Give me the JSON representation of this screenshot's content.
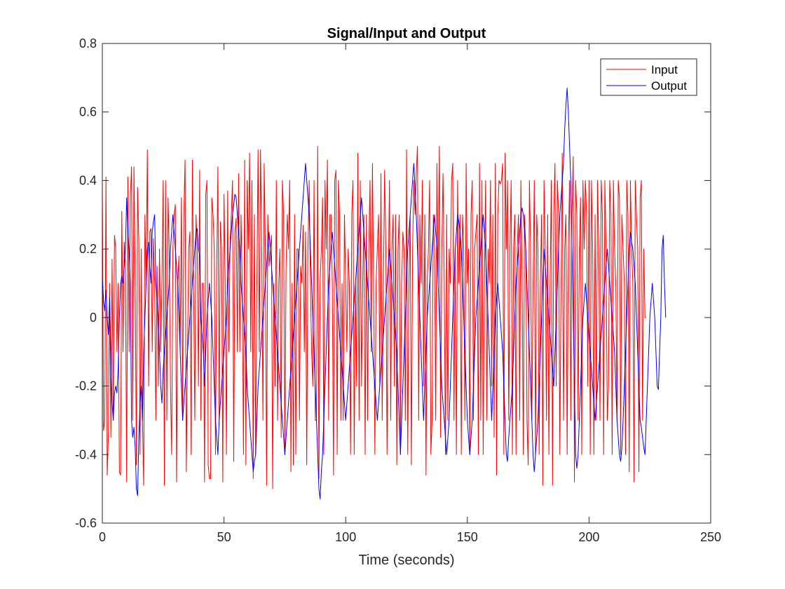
{
  "chart_data": {
    "type": "line",
    "title": "Signal/Input and Output",
    "xlabel": "Time (seconds)",
    "ylabel": "",
    "xlim": [
      0,
      250
    ],
    "ylim": [
      -0.6,
      0.8
    ],
    "xticks": [
      0,
      50,
      100,
      150,
      200,
      250
    ],
    "xtick_labels": [
      "0",
      "50",
      "100",
      "150",
      "200",
      "250"
    ],
    "yticks": [
      -0.6,
      -0.4,
      -0.2,
      0,
      0.2,
      0.4,
      0.6,
      0.8
    ],
    "ytick_labels": [
      "-0.6",
      "-0.4",
      "-0.2",
      "0",
      "0.2",
      "0.4",
      "0.6",
      "0.8"
    ],
    "grid": false,
    "legend_position": "top-right",
    "series": [
      {
        "name": "Input",
        "color": "#ff0000",
        "x_start": 0,
        "x_step": 0.5,
        "values": [
          0.4,
          -0.33,
          -0.3,
          0.41,
          -0.46,
          -0.34,
          0.1,
          -0.35,
          0.17,
          -0.3,
          0.24,
          0.2,
          -0.1,
          0.1,
          -0.45,
          -0.46,
          0.31,
          -0.1,
          0.22,
          0.15,
          -0.48,
          0.41,
          -0.1,
          0.35,
          0.44,
          -0.3,
          0.44,
          0.1,
          -0.43,
          0.38,
          0.22,
          -0.4,
          0.2,
          -0.3,
          -0.49,
          0.3,
          0.1,
          0.49,
          -0.2,
          0.25,
          0.26,
          -0.1,
          0.23,
          0.1,
          -0.3,
          0.15,
          -0.2,
          0.2,
          -0.1,
          0.1,
          0.4,
          -0.49,
          0.4,
          -0.3,
          0.35,
          0.2,
          -0.2,
          -0.4,
          0.2,
          0.3,
          0.33,
          -0.48,
          0.1,
          0.18,
          -0.1,
          0.35,
          -0.3,
          0.3,
          0.46,
          -0.45,
          -0.1,
          0.2,
          0.25,
          -0.4,
          0.46,
          0.1,
          -0.3,
          0.3,
          0.2,
          -0.2,
          0.43,
          -0.3,
          0.1,
          0.1,
          -0.48,
          0.36,
          0.4,
          -0.43,
          -0.47,
          -0.47,
          0.35,
          0.3,
          0.2,
          -0.4,
          0.13,
          0.44,
          -0.3,
          0.28,
          0.2,
          -0.48,
          0.36,
          0.1,
          -0.4,
          0.37,
          -0.1,
          0.22,
          0.3,
          0.4,
          -0.42,
          0.25,
          0.29,
          -0.1,
          0.42,
          -0.1,
          0.3,
          0.1,
          -0.4,
          0.46,
          -0.43,
          0.4,
          0.2,
          0.48,
          -0.1,
          0.4,
          -0.47,
          0.3,
          -0.4,
          0.1,
          0.49,
          -0.1,
          0.49,
          0.2,
          -0.3,
          0.45,
          0.2,
          -0.49,
          0.3,
          0.15,
          0.2,
          0.24,
          -0.5,
          0.1,
          -0.2,
          0.4,
          -0.3,
          0.1,
          0.2,
          -0.35,
          0.4,
          0.3,
          -0.4,
          0.15,
          0.3,
          0.2,
          0.4,
          -0.45,
          0.1,
          -0.43,
          0.3,
          -0.4,
          0.2,
          0.2,
          -0.3,
          0.15,
          0.1,
          0.27,
          -0.1,
          0.25,
          -0.43,
          0.2,
          0.4,
          0.1,
          -0.1,
          -0.2,
          0.4,
          -0.3,
          -0.3,
          0.5,
          -0.47,
          0.1,
          0.2,
          0.35,
          -0.4,
          0.4,
          0.2,
          0.46,
          -0.3,
          0.3,
          0.3,
          0.1,
          -0.46,
          0.4,
          0.43,
          -0.4,
          0.4,
          0.3,
          -0.3,
          0.1,
          -0.3,
          0.3,
          0.1,
          -0.1,
          0.2,
          0.1,
          -0.4,
          0.3,
          0.4,
          -0.4,
          0.1,
          -0.2,
          0.48,
          -0.3,
          0.4,
          -0.2,
          0.1,
          0.3,
          -0.4,
          0.3,
          -0.3,
          0.2,
          0.4,
          -0.1,
          0.45,
          0.1,
          -0.4,
          0.1,
          0.2,
          0.3,
          -0.2,
          0.42,
          -0.3,
          0.1,
          0.43,
          0.2,
          -0.4,
          0.1,
          0.4,
          -0.3,
          0.2,
          0.3,
          -0.2,
          0.3,
          -0.43,
          0.2,
          0.3,
          -0.4,
          0.1,
          0.25,
          0.2,
          -0.3,
          0.49,
          -0.4,
          0.1,
          0.3,
          -0.43,
          0.2,
          0.4,
          0.3,
          0.42,
          0.5,
          -0.3,
          0.3,
          0.1,
          0.4,
          -0.2,
          0.3,
          -0.46,
          0.1,
          0.2,
          0.4,
          -0.4,
          -0.3,
          0.3,
          0.2,
          -0.3,
          0.45,
          0.1,
          0.5,
          -0.35,
          0.2,
          0.42,
          0.1,
          -0.4,
          0.3,
          -0.3,
          0.2,
          0.1,
          0.4,
          0.45,
          -0.3,
          0.2,
          -0.4,
          0.4,
          0.1,
          0.3,
          -0.4,
          0.3,
          0.2,
          -0.3,
          0.45,
          0.1,
          0.2,
          -0.4,
          0.3,
          0.4,
          -0.3,
          0.2,
          0.25,
          0.3,
          -0.4,
          0.45,
          -0.3,
          0.4,
          -0.4,
          0.1,
          0.4,
          -0.3,
          0.2,
          0.1,
          0.4,
          -0.2,
          0.3,
          -0.35,
          0.45,
          -0.46,
          0.3,
          0.4,
          0.39,
          0.4,
          0.45,
          -0.4,
          0.48,
          0.2,
          0.4,
          -0.3,
          0.2,
          0.4,
          -0.4,
          0.2,
          0.3,
          -0.4,
          0.2,
          0.3,
          -0.3,
          0.4,
          0.1,
          -0.4,
          0.3,
          0.2,
          -0.3,
          -0.43,
          0.4,
          0.2,
          -0.3,
          0.1,
          0.4,
          -0.4,
          0.3,
          0.2,
          -0.4,
          0.1,
          0.3,
          -0.49,
          0.4,
          0.2,
          -0.3,
          0.3,
          -0.4,
          0.1,
          0.4,
          -0.49,
          0.3,
          0.45,
          -0.2,
          0.4,
          0.3,
          -0.4,
          0.1,
          0.48,
          -0.3,
          0.2,
          0.3,
          -0.4,
          0.2,
          0.4,
          -0.3,
          0.3,
          0.47,
          -0.48,
          0.4,
          0.3,
          -0.3,
          0.2,
          0.35,
          -0.4,
          0.4,
          0.2,
          0.4,
          0.3,
          -0.2,
          0.4,
          -0.4,
          0.4,
          0.2,
          -0.4,
          0.3,
          -0.3,
          0.4,
          0.2,
          -0.3,
          0.4,
          0.3,
          -0.4,
          0.4,
          0.2,
          -0.3,
          -0.2,
          0.4,
          0.3,
          -0.4,
          0.4,
          0.2,
          0.1,
          -0.3,
          0.4,
          0.35,
          -0.4,
          0.3,
          0.2,
          0.1,
          -0.4,
          0.4,
          0.3,
          -0.45,
          0.4,
          0.2,
          0.1,
          -0.48,
          0.4,
          0.3,
          0.2,
          -0.45,
          0.35,
          0.4,
          -0.3,
          0.2,
          0.0,
          0.0
        ]
      },
      {
        "name": "Output",
        "color": "#0000ff",
        "x_start": 0,
        "x_step": 0.5,
        "values": [
          0.12,
          0.05,
          0.02,
          0.08,
          0.0,
          -0.05,
          0.06,
          -0.1,
          -0.25,
          -0.3,
          -0.22,
          -0.2,
          -0.22,
          -0.15,
          0.0,
          0.1,
          0.12,
          0.1,
          0.15,
          0.2,
          0.35,
          0.25,
          0.2,
          0.1,
          -0.3,
          -0.35,
          -0.32,
          -0.38,
          -0.5,
          -0.52,
          -0.35,
          -0.25,
          -0.2,
          -0.3,
          -0.1,
          0.0,
          0.1,
          0.2,
          0.22,
          0.15,
          0.1,
          0.25,
          0.28,
          0.3,
          0.1,
          0.05,
          0.0,
          -0.1,
          -0.2,
          -0.25,
          -0.15,
          -0.1,
          -0.05,
          0.0,
          0.05,
          0.1,
          0.2,
          0.25,
          0.3,
          0.25,
          0.2,
          0.15,
          0.1,
          0.0,
          -0.1,
          -0.2,
          -0.3,
          -0.25,
          -0.2,
          -0.15,
          -0.1,
          -0.05,
          0.0,
          0.05,
          0.1,
          0.15,
          0.2,
          0.25,
          0.26,
          0.2,
          0.18,
          0.0,
          -0.05,
          -0.1,
          -0.2,
          -0.1,
          0.0,
          0.05,
          0.1,
          0.05,
          0.0,
          -0.1,
          -0.2,
          -0.3,
          -0.35,
          -0.4,
          -0.3,
          -0.25,
          -0.2,
          -0.15,
          -0.1,
          -0.05,
          0.0,
          0.1,
          0.15,
          0.2,
          0.25,
          0.3,
          0.33,
          0.36,
          0.35,
          0.3,
          0.25,
          0.2,
          0.1,
          0.05,
          0.0,
          -0.05,
          -0.1,
          -0.2,
          -0.25,
          -0.3,
          -0.35,
          -0.4,
          -0.45,
          -0.42,
          -0.4,
          -0.3,
          -0.2,
          -0.15,
          -0.1,
          -0.05,
          0.0,
          0.05,
          0.1,
          0.15,
          0.2,
          0.25,
          0.2,
          0.15,
          0.1,
          0.05,
          0.0,
          -0.05,
          -0.1,
          -0.15,
          -0.2,
          -0.25,
          -0.3,
          -0.35,
          -0.4,
          -0.35,
          -0.3,
          -0.25,
          -0.2,
          -0.15,
          -0.1,
          -0.05,
          0.0,
          0.05,
          0.1,
          0.15,
          0.2,
          0.25,
          0.3,
          0.35,
          0.4,
          0.45,
          0.4,
          0.35,
          0.3,
          0.2,
          0.1,
          0.0,
          -0.1,
          -0.2,
          -0.3,
          -0.4,
          -0.5,
          -0.53,
          -0.45,
          -0.4,
          -0.3,
          -0.2,
          -0.1,
          0.0,
          0.1,
          0.15,
          0.2,
          0.25,
          0.2,
          0.15,
          0.1,
          0.05,
          0.0,
          -0.05,
          -0.1,
          -0.15,
          -0.2,
          -0.25,
          -0.3,
          -0.25,
          -0.2,
          -0.15,
          -0.1,
          -0.05,
          0.0,
          0.05,
          0.1,
          0.15,
          0.2,
          0.25,
          0.3,
          0.35,
          0.3,
          0.25,
          0.2,
          0.15,
          0.1,
          0.05,
          0.0,
          -0.05,
          -0.1,
          -0.15,
          -0.2,
          -0.25,
          -0.3,
          -0.25,
          -0.2,
          -0.15,
          -0.1,
          -0.05,
          0.0,
          0.05,
          0.1,
          0.15,
          0.2,
          0.15,
          0.1,
          0.05,
          0.0,
          -0.05,
          -0.1,
          -0.2,
          -0.3,
          -0.4,
          -0.3,
          -0.2,
          -0.1,
          0.0,
          0.1,
          0.2,
          0.25,
          0.3,
          0.35,
          0.4,
          0.45,
          0.38,
          0.3,
          0.2,
          0.1,
          0.0,
          -0.1,
          -0.2,
          -0.3,
          -0.2,
          -0.1,
          0.0,
          0.05,
          0.1,
          0.15,
          0.2,
          0.25,
          0.3,
          0.25,
          0.2,
          0.1,
          0.0,
          -0.1,
          -0.2,
          -0.25,
          -0.3,
          -0.35,
          -0.4,
          -0.35,
          -0.3,
          -0.2,
          -0.1,
          0.0,
          0.1,
          0.2,
          0.25,
          0.3,
          0.28,
          0.25,
          0.2,
          0.1,
          0.0,
          -0.1,
          -0.2,
          -0.3,
          -0.35,
          -0.4,
          -0.35,
          -0.3,
          -0.2,
          -0.1,
          0.0,
          0.05,
          0.1,
          0.15,
          0.2,
          0.25,
          0.3,
          0.25,
          0.2,
          0.1,
          0.0,
          -0.1,
          -0.2,
          -0.3,
          -0.2,
          -0.1,
          0.0,
          0.05,
          0.1,
          0.05,
          0.0,
          -0.05,
          -0.1,
          -0.2,
          -0.3,
          -0.4,
          -0.42,
          -0.35,
          -0.3,
          -0.25,
          -0.2,
          -0.1,
          0.0,
          0.1,
          0.15,
          0.2,
          0.25,
          0.3,
          0.32,
          0.3,
          0.25,
          0.2,
          0.1,
          0.0,
          -0.1,
          -0.2,
          -0.3,
          -0.4,
          -0.45,
          -0.4,
          -0.35,
          -0.3,
          -0.2,
          -0.1,
          0.0,
          0.1,
          0.2,
          0.15,
          0.1,
          0.05,
          0.0,
          -0.05,
          -0.1,
          -0.15,
          -0.2,
          -0.1,
          0.0,
          0.1,
          0.2,
          0.3,
          0.35,
          0.4,
          0.45,
          0.55,
          0.62,
          0.67,
          0.6,
          0.5,
          0.4,
          0.2,
          0.0,
          -0.2,
          -0.4,
          -0.44,
          -0.4,
          -0.3,
          -0.2,
          -0.1,
          0.0,
          0.05,
          0.1,
          0.05,
          0.0,
          -0.05,
          -0.1,
          -0.15,
          -0.2,
          -0.25,
          -0.3,
          -0.25,
          -0.2,
          -0.15,
          -0.1,
          -0.05,
          0.0,
          0.05,
          0.1,
          0.15,
          0.2,
          0.15,
          0.1,
          0.05,
          0.0,
          -0.05,
          -0.1,
          -0.2,
          -0.3,
          -0.35,
          -0.4,
          -0.42,
          -0.38,
          -0.3,
          -0.2,
          -0.1,
          0.0,
          0.1,
          0.2,
          0.25,
          0.22,
          0.2,
          0.15,
          0.1,
          0.0,
          -0.1,
          -0.2,
          -0.3,
          -0.32,
          -0.35,
          -0.38,
          -0.4,
          -0.3,
          -0.2,
          -0.1,
          0.0,
          0.05,
          0.1,
          0.05,
          0.0,
          -0.1,
          -0.2,
          -0.21,
          -0.1,
          0.0,
          0.2,
          0.24,
          0.1,
          0.0
        ]
      }
    ]
  }
}
